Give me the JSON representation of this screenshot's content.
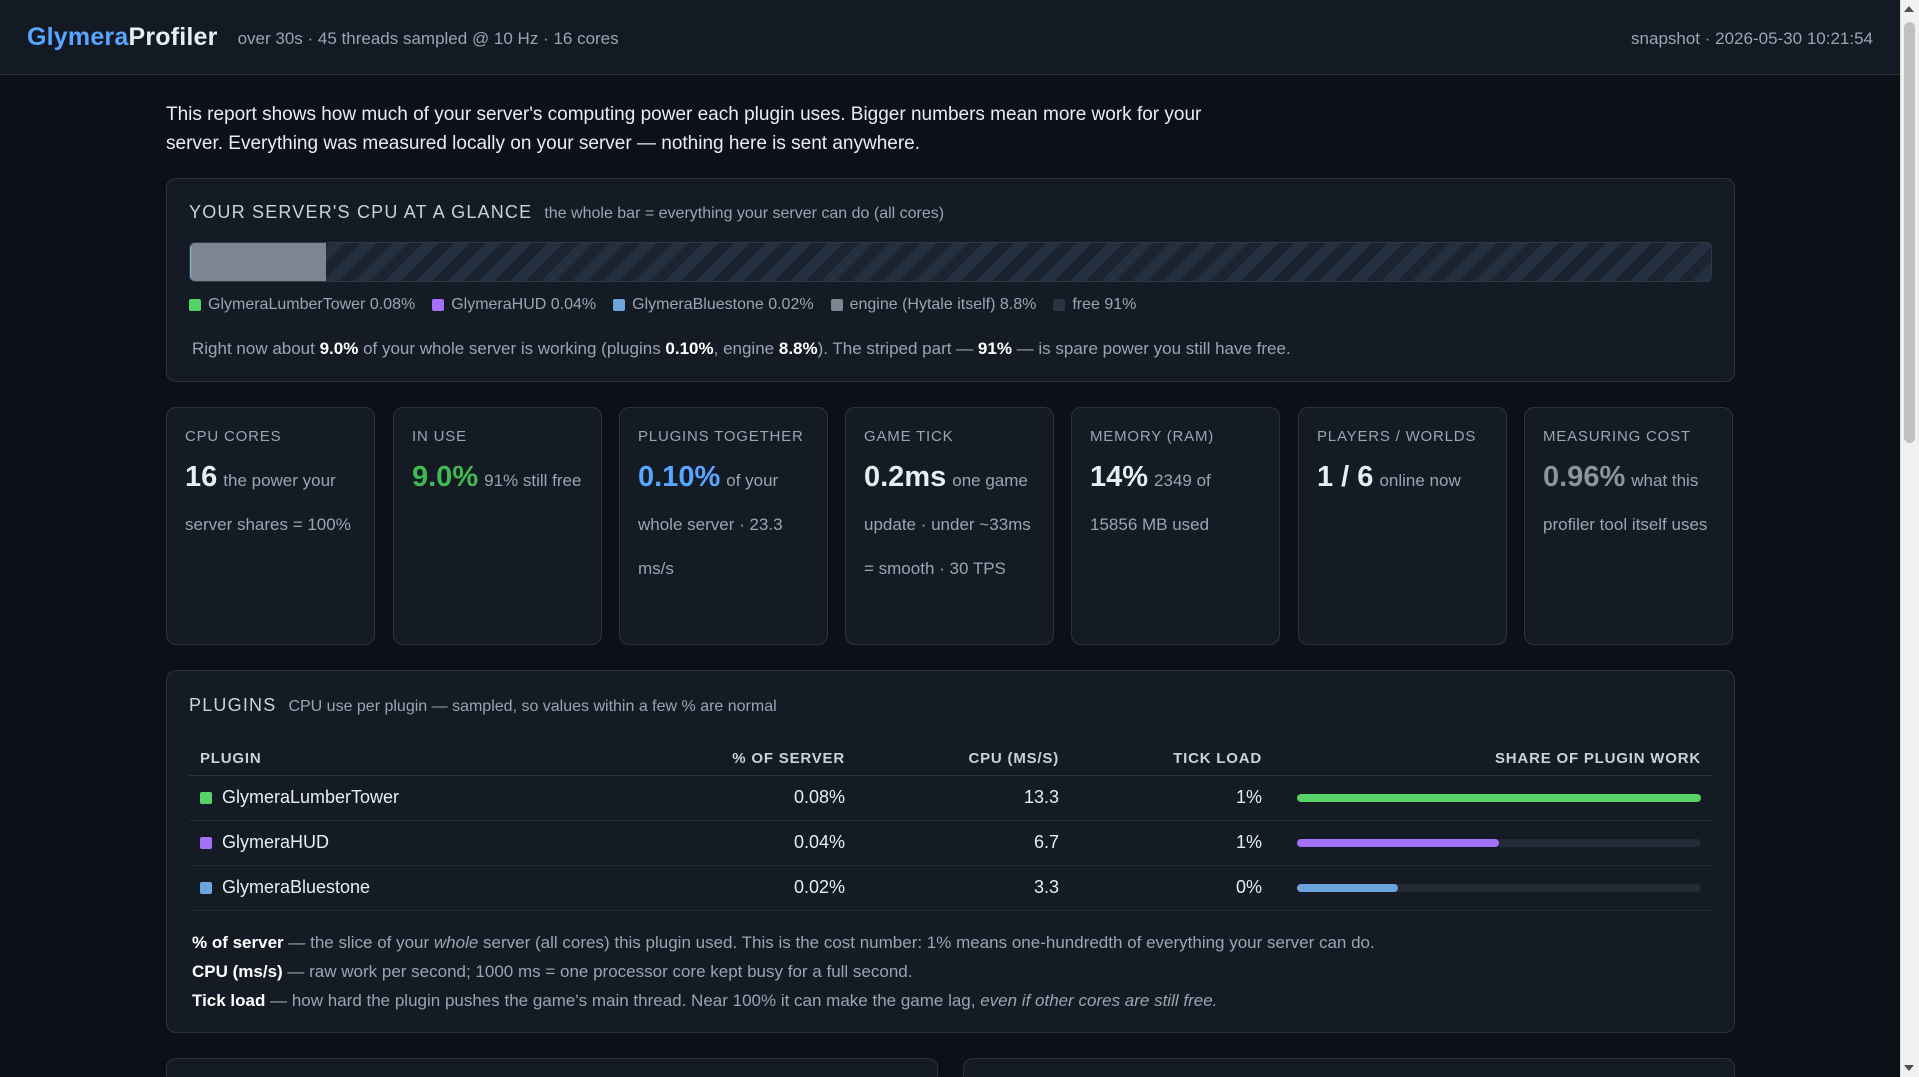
{
  "header": {
    "brand": "Glymera",
    "product": "Profiler",
    "meta": "over 30s · 45 threads sampled @ 10 Hz · 16 cores",
    "snapshot": "snapshot · 2026-05-30 10:21:54"
  },
  "intro": "This report shows how much of your server's computing power each plugin uses. Bigger numbers mean more work for your server. Everything was measured locally on your server — nothing here is sent anywhere.",
  "glance": {
    "title": "Your server's CPU at a glance",
    "subtitle": "the whole bar = everything your server can do (all cores)",
    "bar_segments": [
      {
        "name": "GlymeraLumberTower",
        "percent": 0.08,
        "color": "#56d364"
      },
      {
        "name": "GlymeraHUD",
        "percent": 0.04,
        "color": "#a371f7"
      },
      {
        "name": "GlymeraBluestone",
        "percent": 0.02,
        "color": "#6ca4dc"
      },
      {
        "name": "engine",
        "percent": 8.8,
        "color": "#7d8590"
      }
    ],
    "legend": [
      {
        "label": "GlymeraLumberTower 0.08%",
        "color": "#56d364"
      },
      {
        "label": "GlymeraHUD 0.04%",
        "color": "#a371f7"
      },
      {
        "label": "GlymeraBluestone 0.02%",
        "color": "#6ca4dc"
      },
      {
        "label": "engine (Hytale itself) 8.8%",
        "color": "#7d8590"
      },
      {
        "label": "free 91%",
        "color": "#2a3340"
      }
    ],
    "summary": {
      "p1": "Right now about ",
      "total": "9.0%",
      "p2": " of your whole server is working (plugins ",
      "plugins": "0.10%",
      "p3": ", engine ",
      "engine": "8.8%",
      "p4": "). The striped part — ",
      "free": "91%",
      "p5": " — is spare power you still have free."
    }
  },
  "stats": [
    {
      "label": "CPU cores",
      "value": "16",
      "desc": "the power your server shares = 100%"
    },
    {
      "label": "In use",
      "value": "9.0%",
      "desc": "91% still free"
    },
    {
      "label": "Plugins together",
      "value": "0.10%",
      "desc": "of your whole server · 23.3 ms/s"
    },
    {
      "label": "Game tick",
      "value": "0.2ms",
      "desc": "one game update · under ~33ms = smooth · 30 TPS"
    },
    {
      "label": "Memory (RAM)",
      "value": "14%",
      "desc": "2349 of 15856 MB used"
    },
    {
      "label": "Players / Worlds",
      "value": "1 / 6",
      "desc": "online now"
    },
    {
      "label": "Measuring cost",
      "value": "0.96%",
      "desc": "what this profiler tool itself uses"
    }
  ],
  "plugins": {
    "title": "Plugins",
    "subtitle": "CPU use per plugin — sampled, so values within a few % are normal",
    "columns": [
      "Plugin",
      "% of server",
      "CPU (ms/s)",
      "Tick load",
      "Share of plugin work"
    ],
    "rows": [
      {
        "name": "GlymeraLumberTower",
        "color": "#56d364",
        "server": "0.08%",
        "cpu": "13.3",
        "tick": "1%",
        "share": 1.0
      },
      {
        "name": "GlymeraHUD",
        "color": "#a371f7",
        "server": "0.04%",
        "cpu": "6.7",
        "tick": "1%",
        "share": 0.5
      },
      {
        "name": "GlymeraBluestone",
        "color": "#6ca4dc",
        "server": "0.02%",
        "cpu": "3.3",
        "tick": "0%",
        "share": 0.25
      }
    ],
    "notes": {
      "n1_term": "% of server",
      "n1_a": " — the slice of your ",
      "n1_em": "whole",
      "n1_b": " server (all cores) this plugin used. This is the cost number: 1% means one-hundredth of everything your server can do.",
      "n2_term": "CPU (ms/s)",
      "n2_text": " — raw work per second; 1000 ms = one processor core kept busy for a full second.",
      "n3_term": "Tick load",
      "n3_a": " — how hard the plugin pushes the game's main thread. Near 100% it can make the game lag, ",
      "n3_em": "even if other cores are still free."
    }
  }
}
